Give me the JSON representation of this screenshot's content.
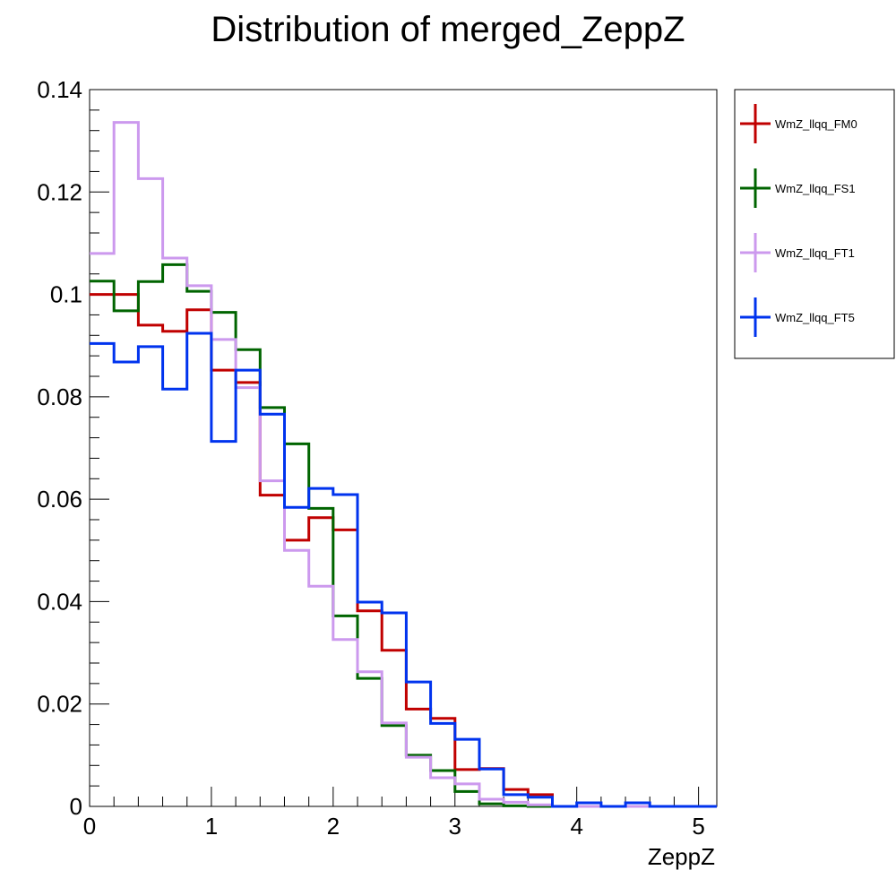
{
  "chart_data": {
    "type": "histogram",
    "title": "Distribution of merged_ZeppZ",
    "xlabel": "ZeppZ",
    "ylabel": "",
    "xlim": [
      0,
      5.15
    ],
    "ylim": [
      0,
      0.14
    ],
    "x_ticks": [
      0,
      1,
      2,
      3,
      4,
      5
    ],
    "x_tick_labels": [
      "0",
      "1",
      "2",
      "3",
      "4",
      "5"
    ],
    "y_ticks": [
      0,
      0.02,
      0.04,
      0.06,
      0.08,
      0.1,
      0.12,
      0.14
    ],
    "y_tick_labels": [
      "0",
      "0.02",
      "0.04",
      "0.06",
      "0.08",
      "0.1",
      "0.12",
      "0.14"
    ],
    "bin_edges": [
      0,
      0.2,
      0.4,
      0.6,
      0.8,
      1.0,
      1.2,
      1.4,
      1.6,
      1.8,
      2.0,
      2.2,
      2.4,
      2.6,
      2.8,
      3.0,
      3.2,
      3.4,
      3.6,
      3.8,
      4.0,
      4.2,
      4.4,
      4.6,
      4.8,
      5.0,
      5.15
    ],
    "legend_position": "top-right outside plot",
    "grid": false,
    "series": [
      {
        "name": "WmZ_llqq_FM0",
        "color": "#c00000",
        "values": [
          0.1,
          0.1,
          0.094,
          0.0928,
          0.097,
          0.0852,
          0.0828,
          0.0608,
          0.052,
          0.0564,
          0.054,
          0.0382,
          0.0305,
          0.019,
          0.0172,
          0.0072,
          0.0074,
          0.0033,
          0.0023,
          0.0,
          0.0,
          0.0,
          0.0,
          0.0,
          0.0,
          0.0
        ]
      },
      {
        "name": "WmZ_llqq_FS1",
        "color": "#006400",
        "values": [
          0.1026,
          0.0968,
          0.1025,
          0.1058,
          0.1006,
          0.0965,
          0.0892,
          0.0779,
          0.0708,
          0.0582,
          0.0372,
          0.025,
          0.0158,
          0.01,
          0.007,
          0.0029,
          0.0005,
          0.0001,
          0.0,
          0.0,
          0.0,
          0.0,
          0.0,
          0.0,
          0.0,
          0.0
        ]
      },
      {
        "name": "WmZ_llqq_FT1",
        "color": "#cc99ee",
        "values": [
          0.108,
          0.1336,
          0.1226,
          0.1071,
          0.1017,
          0.0912,
          0.0818,
          0.0636,
          0.05,
          0.043,
          0.0326,
          0.0263,
          0.0163,
          0.0096,
          0.0056,
          0.0044,
          0.0014,
          0.0008,
          0.0003,
          0.0,
          0.0,
          0.0,
          0.0,
          0.0,
          0.0,
          0.0
        ]
      },
      {
        "name": "WmZ_llqq_FT5",
        "color": "#0033ee",
        "values": [
          0.0904,
          0.0868,
          0.0898,
          0.0815,
          0.0924,
          0.0713,
          0.0852,
          0.0766,
          0.0584,
          0.0621,
          0.0609,
          0.0399,
          0.0378,
          0.0243,
          0.0162,
          0.0131,
          0.0073,
          0.0023,
          0.0018,
          0.0,
          0.0007,
          0.0,
          0.0007,
          0.0,
          0.0,
          0.0
        ]
      }
    ]
  }
}
